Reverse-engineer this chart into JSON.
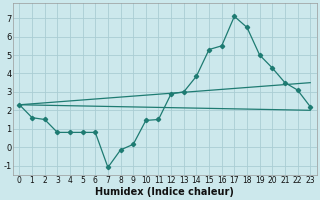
{
  "title": "",
  "xlabel": "Humidex (Indice chaleur)",
  "ylabel": "",
  "background_color": "#cce8ec",
  "grid_color": "#aacdd4",
  "line_color": "#1e7b72",
  "ylim": [
    -1.5,
    7.8
  ],
  "xlim": [
    -0.5,
    23.5
  ],
  "yticks": [
    -1,
    0,
    1,
    2,
    3,
    4,
    5,
    6,
    7
  ],
  "xticks": [
    0,
    1,
    2,
    3,
    4,
    5,
    6,
    7,
    8,
    9,
    10,
    11,
    12,
    13,
    14,
    15,
    16,
    17,
    18,
    19,
    20,
    21,
    22,
    23
  ],
  "series": [
    {
      "x": [
        0,
        1,
        2,
        3,
        4,
        5,
        6,
        7,
        8,
        9,
        10,
        11,
        12,
        13,
        14,
        15,
        16,
        17,
        18,
        19,
        20,
        21,
        22,
        23
      ],
      "y": [
        2.3,
        1.6,
        1.5,
        0.8,
        0.8,
        0.8,
        0.8,
        -1.1,
        -0.15,
        0.15,
        1.45,
        1.5,
        2.9,
        3.0,
        3.85,
        5.3,
        5.5,
        7.1,
        6.5,
        5.0,
        4.3,
        3.5,
        3.1,
        2.2
      ]
    },
    {
      "x": [
        0,
        23
      ],
      "y": [
        2.3,
        3.5
      ]
    },
    {
      "x": [
        0,
        23
      ],
      "y": [
        2.3,
        2.0
      ]
    }
  ]
}
